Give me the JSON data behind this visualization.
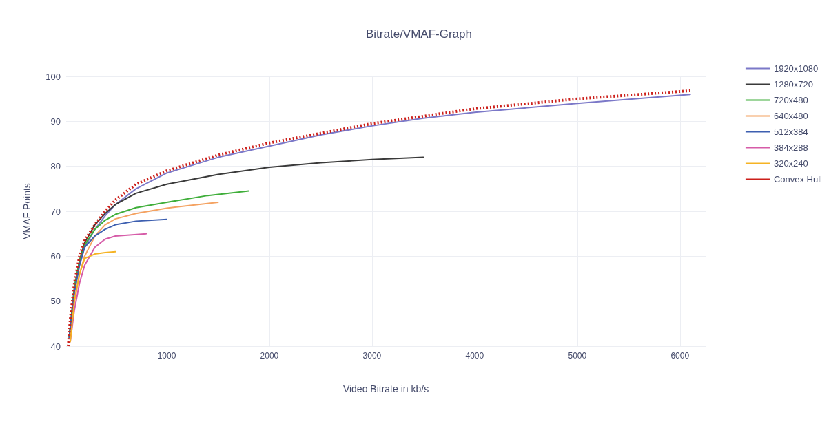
{
  "chart_data": {
    "type": "line",
    "title": "Bitrate/VMAF-Graph",
    "xlabel": "Video Bitrate in kb/s",
    "ylabel": "VMAF Points",
    "xlim": [
      20,
      6250
    ],
    "xticks": [
      1000,
      2000,
      3000,
      4000,
      5000,
      6000
    ],
    "ylim": [
      40,
      100
    ],
    "yticks": [
      40,
      50,
      60,
      70,
      80,
      90,
      100
    ],
    "grid": true,
    "legend": "right",
    "marker": "none",
    "line_style": "solid",
    "series": [
      {
        "name": "1920x1080",
        "color": "#7b78c8",
        "x": [
          50,
          100,
          150,
          200,
          300,
          400,
          500,
          700,
          1000,
          1500,
          2000,
          2500,
          3000,
          3500,
          4000,
          5000,
          6100
        ],
        "values": [
          42,
          52,
          58,
          62,
          66,
          69,
          71.5,
          75,
          78.5,
          82,
          84.5,
          87,
          89,
          90.7,
          92,
          94,
          96
        ]
      },
      {
        "name": "1280x720",
        "color": "#3a3a3a",
        "x": [
          50,
          100,
          150,
          200,
          300,
          400,
          500,
          700,
          1000,
          1500,
          2000,
          2500,
          3000,
          3500
        ],
        "values": [
          42,
          53,
          59,
          63,
          67,
          69.5,
          71.5,
          74,
          76,
          78.2,
          79.8,
          80.8,
          81.5,
          82
        ]
      },
      {
        "name": "720x480",
        "color": "#3fae3a",
        "x": [
          50,
          100,
          150,
          200,
          300,
          400,
          500,
          700,
          1000,
          1400,
          1800
        ],
        "values": [
          42,
          53,
          59,
          62.5,
          66,
          68,
          69.3,
          70.8,
          72,
          73.5,
          74.5
        ]
      },
      {
        "name": "640x480",
        "color": "#f4a261",
        "x": [
          60,
          100,
          150,
          200,
          300,
          400,
          500,
          700,
          1000,
          1500
        ],
        "values": [
          42,
          50,
          56,
          60,
          64.5,
          67,
          68.3,
          69.5,
          70.7,
          72
        ]
      },
      {
        "name": "512x384",
        "color": "#3d5fb0",
        "x": [
          50,
          100,
          150,
          200,
          300,
          400,
          500,
          700,
          1000
        ],
        "values": [
          42,
          52,
          58,
          62,
          64.5,
          66,
          67,
          67.8,
          68.2
        ]
      },
      {
        "name": "384x288",
        "color": "#d65ca8",
        "x": [
          60,
          100,
          150,
          200,
          300,
          400,
          500,
          800
        ],
        "values": [
          41,
          48,
          54,
          58,
          62,
          63.8,
          64.5,
          65
        ]
      },
      {
        "name": "320x240",
        "color": "#f5b324",
        "x": [
          60,
          100,
          150,
          200,
          300,
          400,
          500
        ],
        "values": [
          41,
          50,
          56,
          59.5,
          60.5,
          60.8,
          61
        ]
      },
      {
        "name": "Convex Hull",
        "color": "#cc1f1a",
        "line_style": "dotted",
        "x": [
          40,
          60,
          100,
          150,
          200,
          300,
          400,
          500,
          700,
          1000,
          1500,
          2000,
          3000,
          4000,
          5000,
          6100
        ],
        "values": [
          40,
          46,
          54,
          60,
          63.5,
          67,
          70,
          72.5,
          76,
          79,
          82.5,
          85.2,
          89.5,
          92.8,
          95,
          96.8
        ]
      }
    ]
  }
}
